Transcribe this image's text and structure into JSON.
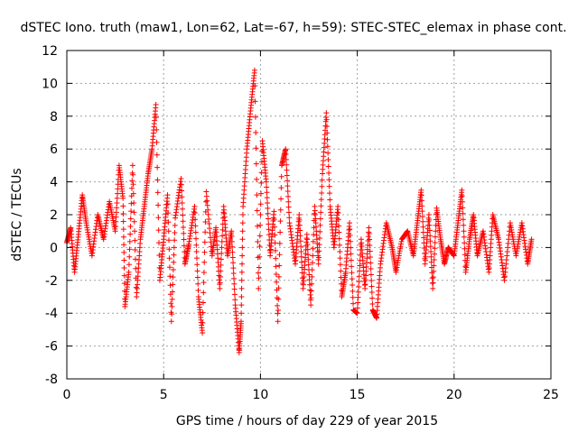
{
  "chart_data": {
    "type": "scatter",
    "title": "dSTEC Iono. truth (maw1, Lon=62, Lat=-67, h=59): STEC-STEC_elemax in phase cont.",
    "xlabel": "GPS time / hours of day 229 of year 2015",
    "ylabel": "dSTEC  / TECUs",
    "xlim": [
      0,
      25
    ],
    "ylim": [
      -8,
      12
    ],
    "xticks": [
      0,
      5,
      10,
      15,
      20,
      25
    ],
    "yticks": [
      -8,
      -6,
      -4,
      -2,
      0,
      2,
      4,
      6,
      8,
      10,
      12
    ],
    "xtick_labels": [
      "0",
      "5",
      "10",
      "15",
      "20",
      "25"
    ],
    "ytick_labels": [
      "-8",
      "-6",
      "-4",
      "-2",
      "0",
      "2",
      "4",
      "6",
      "8",
      "10",
      "12"
    ],
    "grid": true,
    "marker": "plus",
    "color": "#ff0000",
    "series": [
      {
        "name": "",
        "points": [
          [
            0.0,
            0.3
          ],
          [
            0.2,
            1.2
          ],
          [
            0.4,
            -1.5
          ],
          [
            0.6,
            0.8
          ],
          [
            0.8,
            3.2
          ],
          [
            1.0,
            1.5
          ],
          [
            1.3,
            -0.5
          ],
          [
            1.6,
            2.0
          ],
          [
            1.9,
            0.5
          ],
          [
            2.2,
            2.8
          ],
          [
            2.5,
            1.0
          ],
          [
            2.7,
            5.0
          ],
          [
            2.9,
            3.0
          ],
          [
            3.0,
            -3.6
          ],
          [
            3.2,
            -1.5
          ],
          [
            3.4,
            5.0
          ],
          [
            3.6,
            -3.0
          ],
          [
            3.8,
            0.5
          ],
          [
            4.0,
            2.5
          ],
          [
            4.2,
            4.5
          ],
          [
            4.4,
            6.0
          ],
          [
            4.6,
            8.7
          ],
          [
            4.8,
            -2.0
          ],
          [
            5.0,
            0.5
          ],
          [
            5.2,
            3.2
          ],
          [
            5.4,
            -4.5
          ],
          [
            5.6,
            1.8
          ],
          [
            5.9,
            4.2
          ],
          [
            6.1,
            -1.0
          ],
          [
            6.3,
            0.2
          ],
          [
            6.6,
            2.5
          ],
          [
            6.8,
            -3.0
          ],
          [
            7.0,
            -5.2
          ],
          [
            7.2,
            3.4
          ],
          [
            7.5,
            -0.5
          ],
          [
            7.7,
            1.2
          ],
          [
            7.9,
            -2.5
          ],
          [
            8.1,
            2.5
          ],
          [
            8.3,
            -0.5
          ],
          [
            8.5,
            1.0
          ],
          [
            8.7,
            -3.5
          ],
          [
            8.9,
            -6.4
          ],
          [
            9.0,
            -4.5
          ],
          [
            9.1,
            2.5
          ],
          [
            9.3,
            6.0
          ],
          [
            9.5,
            8.5
          ],
          [
            9.7,
            10.8
          ],
          [
            9.9,
            -2.5
          ],
          [
            10.1,
            6.5
          ],
          [
            10.3,
            4.0
          ],
          [
            10.5,
            -0.5
          ],
          [
            10.7,
            2.2
          ],
          [
            10.9,
            -4.5
          ],
          [
            11.1,
            5.0
          ],
          [
            11.3,
            6.0
          ],
          [
            11.5,
            1.5
          ],
          [
            11.8,
            -1.0
          ],
          [
            12.0,
            2.0
          ],
          [
            12.2,
            -2.5
          ],
          [
            12.4,
            0.8
          ],
          [
            12.6,
            -3.5
          ],
          [
            12.8,
            2.5
          ],
          [
            13.0,
            -1.0
          ],
          [
            13.2,
            4.5
          ],
          [
            13.4,
            8.2
          ],
          [
            13.6,
            2.5
          ],
          [
            13.8,
            0.0
          ],
          [
            14.0,
            2.5
          ],
          [
            14.2,
            -3.0
          ],
          [
            14.4,
            -1.5
          ],
          [
            14.6,
            1.5
          ],
          [
            14.8,
            -3.8
          ],
          [
            15.0,
            -4.0
          ],
          [
            15.2,
            0.5
          ],
          [
            15.4,
            -2.5
          ],
          [
            15.6,
            1.2
          ],
          [
            15.8,
            -3.8
          ],
          [
            16.0,
            -4.3
          ],
          [
            16.2,
            -1.0
          ],
          [
            16.5,
            1.5
          ],
          [
            16.8,
            0.0
          ],
          [
            17.0,
            -1.5
          ],
          [
            17.3,
            0.5
          ],
          [
            17.6,
            1.0
          ],
          [
            17.9,
            -0.5
          ],
          [
            18.1,
            1.5
          ],
          [
            18.3,
            3.5
          ],
          [
            18.5,
            -1.0
          ],
          [
            18.7,
            2.0
          ],
          [
            18.9,
            -2.5
          ],
          [
            19.1,
            2.4
          ],
          [
            19.3,
            0.5
          ],
          [
            19.5,
            -1.0
          ],
          [
            19.7,
            0.0
          ],
          [
            20.0,
            -0.5
          ],
          [
            20.2,
            1.5
          ],
          [
            20.4,
            3.5
          ],
          [
            20.6,
            -1.5
          ],
          [
            20.8,
            0.5
          ],
          [
            21.0,
            2.0
          ],
          [
            21.2,
            -0.5
          ],
          [
            21.5,
            1.0
          ],
          [
            21.8,
            -1.5
          ],
          [
            22.0,
            2.0
          ],
          [
            22.3,
            0.5
          ],
          [
            22.6,
            -2.0
          ],
          [
            22.9,
            1.5
          ],
          [
            23.2,
            -0.5
          ],
          [
            23.5,
            1.5
          ],
          [
            23.8,
            -1.0
          ],
          [
            24.0,
            0.5
          ]
        ]
      }
    ]
  }
}
